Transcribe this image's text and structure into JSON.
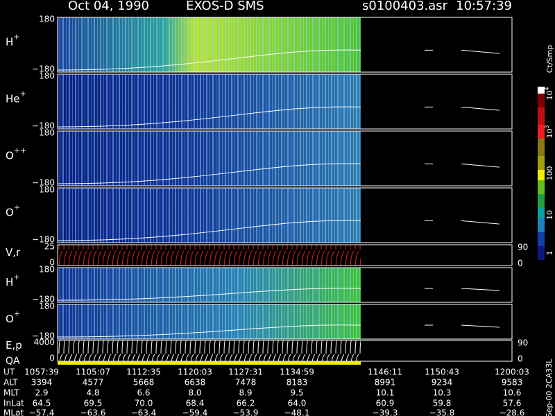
{
  "header": {
    "date": "Oct 04, 1990",
    "instrument": "EXOS-D SMS",
    "file": "s0100403.asr",
    "time": "10:57:39"
  },
  "panels": [
    {
      "label": "H",
      "sup": "+",
      "top": "180",
      "bottom": "−180"
    },
    {
      "label": "He",
      "sup": "+",
      "top": "180",
      "bottom": "−180"
    },
    {
      "label": "O",
      "sup": "++",
      "top": "180",
      "bottom": "−180"
    },
    {
      "label": "O",
      "sup": "+",
      "top": "180",
      "bottom": "−180"
    },
    {
      "label": "V,r",
      "top": "25",
      "bottom": "0",
      "right_top": "90",
      "right_bottom": "0"
    },
    {
      "label": "H",
      "sup": "+",
      "top": "180",
      "bottom": "−180"
    },
    {
      "label": "O",
      "sup": "+",
      "top": "180",
      "bottom": "−180"
    },
    {
      "label": "E,p",
      "label2": "QA",
      "top": "4000",
      "bottom": "0",
      "right_top": "90",
      "right_bottom": "0"
    }
  ],
  "colorbar": {
    "title": "Ct/Smp",
    "labels": [
      {
        "base": "1"
      },
      {
        "base": "10"
      },
      {
        "base": "100"
      },
      {
        "base": "10",
        "exp": "3"
      },
      {
        "base": "10",
        "exp": "4"
      }
    ]
  },
  "table": {
    "rows": [
      {
        "label": "UT",
        "cells": [
          "1057:39",
          "1105:07",
          "1112:35",
          "1120:03",
          "1127:31",
          "1134:59",
          "1146:11",
          "1150:43",
          "1200:03"
        ]
      },
      {
        "label": "ALT",
        "cells": [
          "3394",
          "4577",
          "5668",
          "6638",
          "7478",
          "8183",
          "8991",
          "9234",
          "9583"
        ]
      },
      {
        "label": "MLT",
        "cells": [
          "2.9",
          "4.8",
          "6.6",
          "8.0",
          "8.9",
          "9.5",
          "10.1",
          "10.3",
          "10.6"
        ]
      },
      {
        "label": "InLat",
        "cells": [
          "64.5",
          "69.5",
          "70.0",
          "68.4",
          "66.2",
          "64.0",
          "60.9",
          "59.8",
          "57.6"
        ]
      },
      {
        "label": "MLat",
        "cells": [
          "−57.4",
          "−63.6",
          "−63.4",
          "−59.4",
          "−53.9",
          "−48.1",
          "−39.3",
          "−35.8",
          "−28.6"
        ]
      }
    ]
  },
  "footer": "Sep-00 2CA33L"
}
